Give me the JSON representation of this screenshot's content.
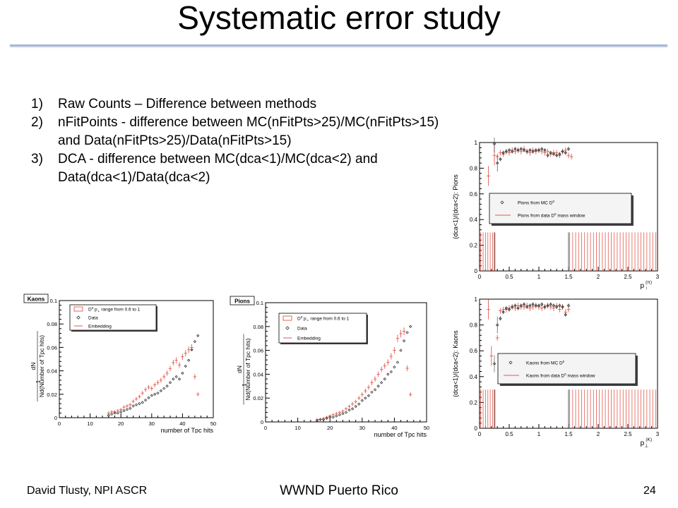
{
  "slide": {
    "title": "Systematic error study",
    "items": [
      {
        "num": "1)",
        "text": "Raw Counts – Difference between methods"
      },
      {
        "num": "2)",
        "text": "nFitPoints - difference between MC(nFitPts>25)/MC(nFitPts>15) and Data(nFitPts>25)/Data(nFitPts>15)"
      },
      {
        "num": "3)",
        "text": "DCA - difference between MC(dca<1)/MC(dca<2) and Data(dca<1)/Data(dca<2)"
      }
    ],
    "footer": {
      "left": "David Tlusty, NPI ASCR",
      "center": "WWND Puerto Rico",
      "page": "24"
    }
  },
  "chart_data": [
    {
      "id": "kaons-hits",
      "type": "scatter",
      "tag": "Kaons",
      "xlabel": "number of Tpc hits",
      "ylabel": "dN / Nd(Number of Tpc hits)",
      "ylabel_top": "dN",
      "ylabel_bottom": "Nd(Number of Tpc hits)",
      "ylabel_one": "1",
      "xlim": [
        0,
        50
      ],
      "ylim": [
        0,
        0.1
      ],
      "xticks": [
        "0",
        "10",
        "20",
        "30",
        "40",
        "50"
      ],
      "yticks": [
        "0",
        "0.02",
        "0.04",
        "0.06",
        "0.08",
        "0.1"
      ],
      "legend": {
        "range_label": "D",
        "range_sup": "0",
        "range_text": " p",
        "range_sub": "⊥",
        "range_rest": " range from 0.6 to 1",
        "entries": [
          "Data",
          "Embedding"
        ]
      },
      "series": [
        {
          "name": "Data",
          "x": [
            16,
            17,
            18,
            19,
            20,
            21,
            22,
            23,
            24,
            25,
            26,
            27,
            28,
            29,
            30,
            31,
            32,
            33,
            34,
            35,
            36,
            37,
            38,
            39,
            40,
            41,
            42,
            43,
            44,
            45
          ],
          "y": [
            0.002,
            0.003,
            0.004,
            0.004,
            0.005,
            0.006,
            0.007,
            0.008,
            0.01,
            0.011,
            0.012,
            0.013,
            0.015,
            0.017,
            0.019,
            0.02,
            0.021,
            0.023,
            0.025,
            0.027,
            0.03,
            0.033,
            0.035,
            0.033,
            0.038,
            0.044,
            0.049,
            0.058,
            0.065,
            0.07
          ]
        },
        {
          "name": "Embedding",
          "x": [
            16,
            17,
            18,
            19,
            20,
            21,
            22,
            23,
            24,
            25,
            26,
            27,
            28,
            29,
            30,
            31,
            32,
            33,
            34,
            35,
            36,
            37,
            38,
            39,
            40,
            41,
            42,
            43,
            44,
            45
          ],
          "y": [
            0.004,
            0.005,
            0.005,
            0.006,
            0.007,
            0.009,
            0.01,
            0.011,
            0.014,
            0.016,
            0.018,
            0.021,
            0.024,
            0.026,
            0.025,
            0.028,
            0.03,
            0.032,
            0.035,
            0.038,
            0.042,
            0.047,
            0.049,
            0.045,
            0.052,
            0.055,
            0.058,
            0.06,
            0.035,
            0.02
          ]
        }
      ]
    },
    {
      "id": "pions-hits",
      "type": "scatter",
      "tag": "Pions",
      "xlabel": "number of Tpc hits",
      "ylabel": "dN / Nd(Number of Tpc hits)",
      "ylabel_top": "dN",
      "ylabel_bottom": "Nd(Number of Tpc hits)",
      "ylabel_one": "1",
      "xlim": [
        0,
        50
      ],
      "ylim": [
        0,
        0.1
      ],
      "xticks": [
        "0",
        "10",
        "20",
        "30",
        "40",
        "50"
      ],
      "yticks": [
        "0",
        "0.02",
        "0.04",
        "0.06",
        "0.08",
        "0.1"
      ],
      "legend": {
        "range_label": "D",
        "range_sup": "0",
        "range_text": " p",
        "range_sub": "⊥",
        "range_rest": " range from 0.6 to 1",
        "entries": [
          "Data",
          "Embedding"
        ]
      },
      "series": [
        {
          "name": "Data",
          "x": [
            16,
            17,
            18,
            19,
            20,
            21,
            22,
            23,
            24,
            25,
            26,
            27,
            28,
            29,
            30,
            31,
            32,
            33,
            34,
            35,
            36,
            37,
            38,
            39,
            40,
            41,
            42,
            43,
            44,
            45
          ],
          "y": [
            0.001,
            0.002,
            0.002,
            0.003,
            0.004,
            0.004,
            0.005,
            0.006,
            0.007,
            0.008,
            0.01,
            0.011,
            0.013,
            0.015,
            0.018,
            0.02,
            0.022,
            0.025,
            0.027,
            0.03,
            0.033,
            0.036,
            0.04,
            0.042,
            0.046,
            0.05,
            0.06,
            0.068,
            0.075,
            0.08
          ]
        },
        {
          "name": "Embedding",
          "x": [
            16,
            17,
            18,
            19,
            20,
            21,
            22,
            23,
            24,
            25,
            26,
            27,
            28,
            29,
            30,
            31,
            32,
            33,
            34,
            35,
            36,
            37,
            38,
            39,
            40,
            41,
            42,
            43,
            44,
            45
          ],
          "y": [
            0.002,
            0.002,
            0.003,
            0.004,
            0.005,
            0.006,
            0.007,
            0.008,
            0.009,
            0.011,
            0.013,
            0.015,
            0.017,
            0.02,
            0.023,
            0.026,
            0.029,
            0.033,
            0.036,
            0.04,
            0.044,
            0.047,
            0.05,
            0.055,
            0.06,
            0.07,
            0.074,
            0.076,
            0.045,
            0.023
          ]
        }
      ]
    },
    {
      "id": "pions-dca",
      "type": "scatter",
      "ylabel": "(dca<1)/(dca<2): Pions",
      "xlabel_main": "p",
      "xlabel_sub": "⊥",
      "xlabel_sup": "(π)",
      "xlim": [
        0,
        3
      ],
      "ylim": [
        0,
        1
      ],
      "xticks": [
        "0",
        "0.5",
        "1",
        "1.5",
        "2",
        "2.5",
        "3"
      ],
      "yticks": [
        "0",
        "0.2",
        "0.4",
        "0.6",
        "0.8",
        "1"
      ],
      "legend": {
        "entries": [
          {
            "main": "Pions from MC D",
            "sup": "0"
          },
          {
            "main": "Pions from data D",
            "sup": "0",
            "rest": " mass window"
          }
        ]
      },
      "series": [
        {
          "name": "Pions from MC D0",
          "x": [
            0.25,
            0.3,
            0.35,
            0.4,
            0.45,
            0.5,
            0.55,
            0.6,
            0.65,
            0.7,
            0.75,
            0.8,
            0.85,
            0.9,
            0.95,
            1.0,
            1.05,
            1.1,
            1.15,
            1.2,
            1.25,
            1.3,
            1.35,
            1.4,
            1.45,
            1.5
          ],
          "y": [
            0.99,
            0.84,
            0.87,
            0.92,
            0.93,
            0.94,
            0.93,
            0.95,
            0.94,
            0.95,
            0.94,
            0.93,
            0.94,
            0.93,
            0.94,
            0.94,
            0.95,
            0.94,
            0.9,
            0.92,
            0.91,
            0.9,
            0.91,
            0.93,
            0.92,
            0.95
          ]
        },
        {
          "name": "Pions from data D0 mass window",
          "x": [
            0.15,
            0.25,
            0.3,
            0.35,
            0.4,
            0.45,
            0.5,
            0.55,
            0.6,
            0.65,
            0.7,
            0.75,
            0.8,
            0.85,
            0.9,
            0.95,
            1.0,
            1.05,
            1.1,
            1.15,
            1.2,
            1.25,
            1.3,
            1.35,
            1.4,
            1.45,
            1.5,
            1.55
          ],
          "y": [
            0.74,
            0.9,
            0.89,
            0.92,
            0.91,
            0.93,
            0.92,
            0.94,
            0.93,
            0.94,
            0.93,
            0.95,
            0.93,
            0.92,
            0.94,
            0.93,
            0.94,
            0.93,
            0.92,
            0.93,
            0.91,
            0.92,
            0.92,
            0.9,
            0.93,
            0.94,
            0.9,
            0.89
          ]
        }
      ]
    },
    {
      "id": "kaons-dca",
      "type": "scatter",
      "ylabel": "(dca<1)/(dca<2): Kaons",
      "xlabel_main": "p",
      "xlabel_sub": "⊥",
      "xlabel_sup": "(K)",
      "xlim": [
        0,
        3
      ],
      "ylim": [
        0,
        1
      ],
      "xticks": [
        "0",
        "0.5",
        "1",
        "1.5",
        "2",
        "2.5",
        "3"
      ],
      "yticks": [
        "0",
        "0.2",
        "0.4",
        "0.6",
        "0.8",
        "1"
      ],
      "legend": {
        "entries": [
          {
            "main": "Kaons from MC D",
            "sup": "0"
          },
          {
            "main": "Kaons from data D",
            "sup": "0",
            "rest": " mass window"
          }
        ]
      },
      "series": [
        {
          "name": "Kaons from MC D0",
          "x": [
            0.25,
            0.3,
            0.35,
            0.4,
            0.45,
            0.5,
            0.55,
            0.6,
            0.65,
            0.7,
            0.75,
            0.8,
            0.85,
            0.9,
            0.95,
            1.0,
            1.05,
            1.1,
            1.15,
            1.2,
            1.25,
            1.3,
            1.35,
            1.4,
            1.45,
            1.5
          ],
          "y": [
            0.5,
            0.8,
            0.85,
            0.9,
            0.93,
            0.92,
            0.94,
            0.95,
            0.93,
            0.95,
            0.96,
            0.94,
            0.95,
            0.96,
            0.95,
            0.95,
            0.96,
            0.94,
            0.95,
            0.96,
            0.95,
            0.94,
            0.95,
            0.94,
            0.88,
            0.95
          ]
        },
        {
          "name": "Kaons from data D0 mass window",
          "x": [
            0.15,
            0.2,
            0.3,
            0.35,
            0.4,
            0.45,
            0.5,
            0.55,
            0.6,
            0.65,
            0.7,
            0.75,
            0.8,
            0.85,
            0.9,
            0.95,
            1.0,
            1.05,
            1.1,
            1.15,
            1.2,
            1.25,
            1.3,
            1.35,
            1.4,
            1.45,
            1.5
          ],
          "y": [
            0.92,
            0.56,
            0.7,
            0.91,
            0.92,
            0.92,
            0.93,
            0.94,
            0.93,
            0.95,
            0.94,
            0.94,
            0.95,
            0.93,
            0.94,
            0.95,
            0.94,
            0.93,
            0.94,
            0.95,
            0.94,
            0.93,
            0.95,
            0.92,
            0.94,
            0.9,
            0.92
          ]
        }
      ]
    }
  ],
  "colors": {
    "accent_rule": "#a8b9d4",
    "embedding": "#e05a4e",
    "data_marker": "#333333",
    "box_fill": "#f4f4f4"
  }
}
